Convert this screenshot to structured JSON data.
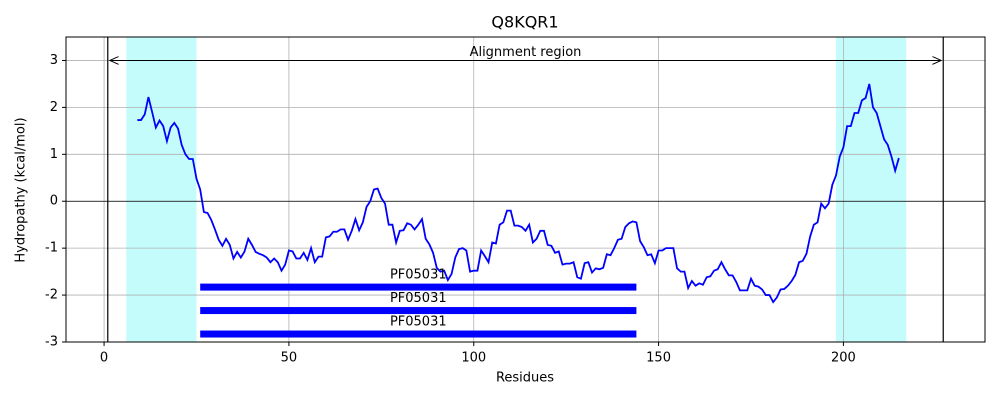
{
  "chart_data": {
    "type": "line",
    "title": "Q8KQR1",
    "x_label": "Residues",
    "y_label": "Hydropathy (kcal/mol)",
    "xlim": [
      -10.3,
      238.3
    ],
    "ylim": [
      -3,
      3.5
    ],
    "xticks": [
      0,
      50,
      100,
      150,
      200
    ],
    "yticks": [
      -3,
      -2,
      -1,
      0,
      1,
      2,
      3
    ],
    "grid": true,
    "alignment": {
      "text": "Alignment region",
      "start": 1,
      "end": 227,
      "y": 3
    },
    "spans": [
      {
        "start": 6,
        "end": 25,
        "color": "#c4fcfc"
      },
      {
        "start": 198,
        "end": 217,
        "color": "#c4fcfc"
      }
    ],
    "domains": [
      {
        "label": "PF05031",
        "start": 26,
        "end": 144,
        "y": -1.83,
        "color": "#0000ff"
      },
      {
        "label": "PF05031",
        "start": 26,
        "end": 144,
        "y": -2.33,
        "color": "#0000ff"
      },
      {
        "label": "PF05031",
        "start": 26,
        "end": 144,
        "y": -2.83,
        "color": "#0000ff"
      }
    ],
    "series": [
      {
        "color": "#0000ff",
        "x": [
          9,
          10,
          11,
          12,
          13,
          14,
          15,
          16,
          17,
          18,
          19,
          20,
          21,
          22,
          23,
          24,
          25,
          26,
          27,
          28,
          29,
          30,
          31,
          32,
          33,
          34,
          35,
          36,
          37,
          38,
          39,
          40,
          41,
          42,
          43,
          44,
          45,
          46,
          47,
          48,
          49,
          50,
          51,
          52,
          53,
          54,
          55,
          56,
          57,
          58,
          59,
          60,
          61,
          62,
          63,
          64,
          65,
          66,
          67,
          68,
          69,
          70,
          71,
          72,
          73,
          74,
          75,
          76,
          77,
          78,
          79,
          80,
          81,
          82,
          83,
          84,
          85,
          86,
          87,
          88,
          89,
          90,
          91,
          92,
          93,
          94,
          95,
          96,
          97,
          98,
          99,
          100,
          101,
          102,
          103,
          104,
          105,
          106,
          107,
          108,
          109,
          110,
          111,
          112,
          113,
          114,
          115,
          116,
          117,
          118,
          119,
          120,
          121,
          122,
          123,
          124,
          125,
          126,
          127,
          128,
          129,
          130,
          131,
          132,
          133,
          134,
          135,
          136,
          137,
          138,
          139,
          140,
          141,
          142,
          143,
          144,
          145,
          146,
          147,
          148,
          149,
          150,
          151,
          152,
          153,
          154,
          155,
          156,
          157,
          158,
          159,
          160,
          161,
          162,
          163,
          164,
          165,
          166,
          167,
          168,
          169,
          170,
          171,
          172,
          173,
          174,
          175,
          176,
          177,
          178,
          179,
          180,
          181,
          182,
          183,
          184,
          185,
          186,
          187,
          188,
          189,
          190,
          191,
          192,
          193,
          194,
          195,
          196,
          197,
          198,
          199,
          200,
          201,
          202,
          203,
          204,
          205,
          206,
          207,
          208,
          209,
          210,
          211,
          212,
          213,
          214,
          215
        ],
        "values": [
          1.73,
          1.73,
          1.85,
          2.22,
          1.9,
          1.57,
          1.72,
          1.6,
          1.28,
          1.57,
          1.67,
          1.55,
          1.2,
          1.0,
          0.9,
          0.9,
          0.48,
          0.25,
          -0.23,
          -0.25,
          -0.4,
          -0.6,
          -0.82,
          -0.95,
          -0.8,
          -0.93,
          -1.22,
          -1.08,
          -1.2,
          -1.07,
          -0.8,
          -0.93,
          -1.08,
          -1.12,
          -1.15,
          -1.2,
          -1.3,
          -1.22,
          -1.3,
          -1.48,
          -1.35,
          -1.05,
          -1.07,
          -1.22,
          -1.22,
          -1.1,
          -1.25,
          -1.0,
          -1.3,
          -1.18,
          -1.18,
          -0.77,
          -0.75,
          -0.65,
          -0.65,
          -0.6,
          -0.6,
          -0.82,
          -0.63,
          -0.38,
          -0.62,
          -0.45,
          -0.12,
          0,
          0.25,
          0.27,
          0.07,
          -0.05,
          -0.5,
          -0.5,
          -0.88,
          -0.63,
          -0.62,
          -0.47,
          -0.5,
          -0.6,
          -0.5,
          -0.38,
          -0.8,
          -0.92,
          -1.1,
          -1.42,
          -1.5,
          -1.48,
          -1.68,
          -1.55,
          -1.2,
          -1.02,
          -1.0,
          -1.05,
          -1.5,
          -1.48,
          -1.48,
          -1.05,
          -1.17,
          -1.3,
          -0.88,
          -0.9,
          -0.5,
          -0.45,
          -0.2,
          -0.2,
          -0.52,
          -0.52,
          -0.55,
          -0.63,
          -0.5,
          -0.88,
          -0.8,
          -0.63,
          -0.63,
          -0.93,
          -0.95,
          -1.1,
          -1.07,
          -1.35,
          -1.33,
          -1.33,
          -1.3,
          -1.62,
          -1.65,
          -1.32,
          -1.3,
          -1.52,
          -1.43,
          -1.45,
          -1.42,
          -1.13,
          -1.15,
          -1.0,
          -0.82,
          -0.8,
          -0.55,
          -0.47,
          -0.43,
          -0.45,
          -0.85,
          -0.98,
          -1.15,
          -1.13,
          -1.32,
          -1.05,
          -1.05,
          -1.0,
          -1.0,
          -1.0,
          -1.43,
          -1.5,
          -1.5,
          -1.85,
          -1.7,
          -1.8,
          -1.75,
          -1.78,
          -1.62,
          -1.6,
          -1.48,
          -1.45,
          -1.3,
          -1.45,
          -1.58,
          -1.58,
          -1.72,
          -1.9,
          -1.9,
          -1.9,
          -1.65,
          -1.8,
          -1.82,
          -1.88,
          -2.0,
          -2.0,
          -2.15,
          -2.05,
          -1.88,
          -1.87,
          -1.8,
          -1.7,
          -1.57,
          -1.3,
          -1.27,
          -1.12,
          -0.75,
          -0.5,
          -0.45,
          -0.05,
          -0.15,
          -0.05,
          0.35,
          0.55,
          0.95,
          1.15,
          1.6,
          1.6,
          1.88,
          1.88,
          2.15,
          2.2,
          2.5,
          2.0,
          1.88,
          1.6,
          1.32,
          1.2,
          0.95,
          0.65,
          0.92
        ]
      }
    ]
  }
}
